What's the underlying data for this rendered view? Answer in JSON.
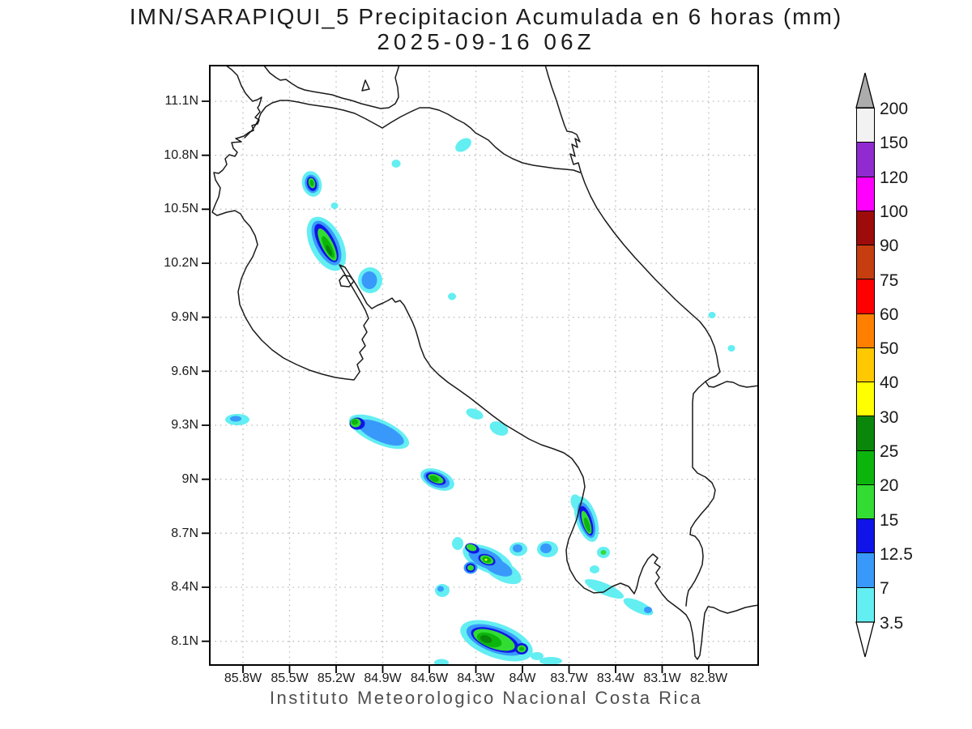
{
  "title": {
    "line1": "IMN/SARAPIQUI_5 Precipitacion Acumulada en 6 horas (mm)",
    "line2": "2025-09-16 06Z"
  },
  "footer": "Instituto Meteorologico Nacional Costa Rica",
  "axes": {
    "lat_ticks": [
      "11.1N",
      "10.8N",
      "10.5N",
      "10.2N",
      "9.9N",
      "9.6N",
      "9.3N",
      "9N",
      "8.7N",
      "8.4N",
      "8.1N"
    ],
    "lon_ticks": [
      "85.8W",
      "85.5W",
      "85.2W",
      "84.9W",
      "84.6W",
      "84.3W",
      "84W",
      "83.7W",
      "83.4W",
      "83.1W",
      "82.8W"
    ]
  },
  "colorbar": {
    "labels": [
      "200",
      "150",
      "120",
      "100",
      "90",
      "75",
      "60",
      "50",
      "40",
      "30",
      "25",
      "20",
      "15",
      "12.5",
      "7",
      "3.5"
    ],
    "segments": [
      {
        "color": "#F2F2F2"
      },
      {
        "color": "#8F2BD0"
      },
      {
        "color": "#FF00FF"
      },
      {
        "color": "#9E0B0B"
      },
      {
        "color": "#C63D10"
      },
      {
        "color": "#FF0000"
      },
      {
        "color": "#FF8000"
      },
      {
        "color": "#FFC800"
      },
      {
        "color": "#FFFF00"
      },
      {
        "color": "#0A870A"
      },
      {
        "color": "#0CB50C"
      },
      {
        "color": "#33DC33"
      },
      {
        "color": "#1014E8"
      },
      {
        "color": "#3899FB"
      },
      {
        "color": "#63EEF2"
      }
    ],
    "arrow_top_color": "#ACACAC",
    "arrow_bottom_color": "#FFFFFF"
  },
  "palette": {
    "c1": "#63EEF2",
    "c2": "#3899FB",
    "c3": "#1014E8",
    "c4": "#33DC33",
    "c5": "#0CB50C",
    "c6": "#0A870A",
    "yellow": "#FFFF00",
    "coast": "#1A1A1A",
    "border": "#2B2B2B",
    "grid": "#BDBDBD",
    "frame": "#000000"
  },
  "chart_data": {
    "type": "contour_map",
    "title": "IMN/SARAPIQUI_5 Precipitacion Acumulada en 6 horas (mm)",
    "valid_time": "2025-09-16 06Z",
    "units": "mm",
    "region": "Costa Rica",
    "lat_ticks": [
      "8.1N",
      "8.4N",
      "8.7N",
      "9N",
      "9.3N",
      "9.6N",
      "9.9N",
      "10.2N",
      "10.5N",
      "10.8N",
      "11.1N"
    ],
    "lon_ticks": [
      "85.8W",
      "85.5W",
      "85.2W",
      "84.9W",
      "84.6W",
      "84.3W",
      "84W",
      "83.7W",
      "83.4W",
      "83.1W",
      "82.8W"
    ],
    "grid": "dotted",
    "legend_position": "right",
    "contour_levels_mm": [
      3.5,
      7,
      12.5,
      15,
      20,
      25,
      30,
      40,
      50,
      60,
      75,
      90,
      100,
      120,
      150,
      200
    ],
    "level_colors": [
      "#63EEF2",
      "#3899FB",
      "#1014E8",
      "#33DC33",
      "#0CB50C",
      "#0A870A",
      "#FFFF00",
      "#FFC800",
      "#FF8000",
      "#FF0000",
      "#C63D10",
      "#9E0B0B",
      "#FF00FF",
      "#8F2BD0",
      "#F2F2F2",
      "#ACACAC"
    ],
    "cells": [
      {
        "lon": "85.36W",
        "lat": "10.64N",
        "peak_mm": "20-25"
      },
      {
        "lon": "85.26W",
        "lat": "10.31N",
        "peak_mm": "25-30"
      },
      {
        "lon": "84.98W",
        "lat": "10.11N",
        "peak_mm": "7-12.5"
      },
      {
        "lon": "84.38W",
        "lat": "10.86N",
        "peak_mm": "3.5-7"
      },
      {
        "lon": "84.81W",
        "lat": "10.75N",
        "peak_mm": "3.5-7"
      },
      {
        "lon": "85.21W",
        "lat": "10.52N",
        "peak_mm": "3.5-7"
      },
      {
        "lon": "84.45W",
        "lat": "10.02N",
        "peak_mm": "3.5-7"
      },
      {
        "lon": "85.84W",
        "lat": "9.33N",
        "peak_mm": "7-12.5"
      },
      {
        "lon": "85.07W",
        "lat": "9.31N",
        "peak_mm": "20-25",
        "note": "tail of 7-12.5 extends ESE to 84.7W"
      },
      {
        "lon": "84.31W",
        "lat": "9.36N",
        "peak_mm": "3.5-7"
      },
      {
        "lon": "84.15W",
        "lat": "9.28N",
        "peak_mm": "3.5-7"
      },
      {
        "lon": "84.55W",
        "lat": "9.00N",
        "peak_mm": "20-25"
      },
      {
        "lon": "83.59W",
        "lat": "8.78N",
        "peak_mm": "25-30"
      },
      {
        "lon": "84.23W",
        "lat": "8.56N",
        "peak_mm": "30-40"
      },
      {
        "lon": "84.33W",
        "lat": "8.51N",
        "peak_mm": "15-20"
      },
      {
        "lon": "84.42W",
        "lat": "8.64N",
        "peak_mm": "3.5-7"
      },
      {
        "lon": "84.52W",
        "lat": "8.38N",
        "peak_mm": "3.5-7"
      },
      {
        "lon": "84.03W",
        "lat": "8.61N",
        "peak_mm": "7-12.5"
      },
      {
        "lon": "83.84W",
        "lat": "8.61N",
        "peak_mm": "7-12.5"
      },
      {
        "lon": "83.48W",
        "lat": "8.59N",
        "peak_mm": "15-20"
      },
      {
        "lon": "83.54W",
        "lat": "8.50N",
        "peak_mm": "3.5-7"
      },
      {
        "lon": "83.45W",
        "lat": "8.35N",
        "peak_mm": "7-12.5",
        "note": "thin diagonal streak"
      },
      {
        "lon": "84.17W",
        "lat": "8.10N",
        "peak_mm": "25-30"
      },
      {
        "lon": "84.52W",
        "lat": "7.98N",
        "peak_mm": "3.5-7"
      },
      {
        "lon": "83.82W",
        "lat": "7.99N",
        "peak_mm": "3.5-7"
      },
      {
        "lon": "82.78W",
        "lat": "9.91N",
        "peak_mm": "3.5-7"
      },
      {
        "lon": "82.65W",
        "lat": "9.73N",
        "peak_mm": "3.5-7"
      }
    ]
  }
}
